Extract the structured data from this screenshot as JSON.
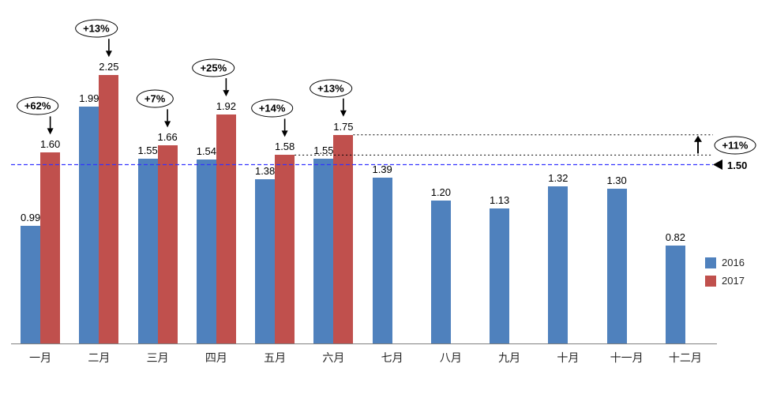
{
  "chart_data": {
    "type": "bar",
    "categories": [
      "一月",
      "二月",
      "三月",
      "四月",
      "五月",
      "六月",
      "七月",
      "八月",
      "九月",
      "十月",
      "十一月",
      "十二月"
    ],
    "series": [
      {
        "name": "2016",
        "color": "#4F81BD",
        "values": [
          0.99,
          1.99,
          1.55,
          1.54,
          1.38,
          1.55,
          1.39,
          1.2,
          1.13,
          1.32,
          1.3,
          0.82
        ]
      },
      {
        "name": "2017",
        "color": "#C0504D",
        "values": [
          1.6,
          2.25,
          1.66,
          1.92,
          1.58,
          1.75,
          null,
          null,
          null,
          null,
          null,
          null
        ]
      }
    ],
    "growth_labels": [
      "+62%",
      "+13%",
      "+7%",
      "+25%",
      "+14%",
      "+13%",
      null,
      null,
      null,
      null,
      null,
      null
    ],
    "reference_line": {
      "value": 1.5,
      "label": "1.50",
      "color": "#3333FF"
    },
    "uplift_annotation": {
      "label": "+11%",
      "from_value": 1.58,
      "to_value": 1.75
    },
    "ylim": [
      0,
      2.5
    ],
    "grid": false,
    "legend_position": "right"
  }
}
